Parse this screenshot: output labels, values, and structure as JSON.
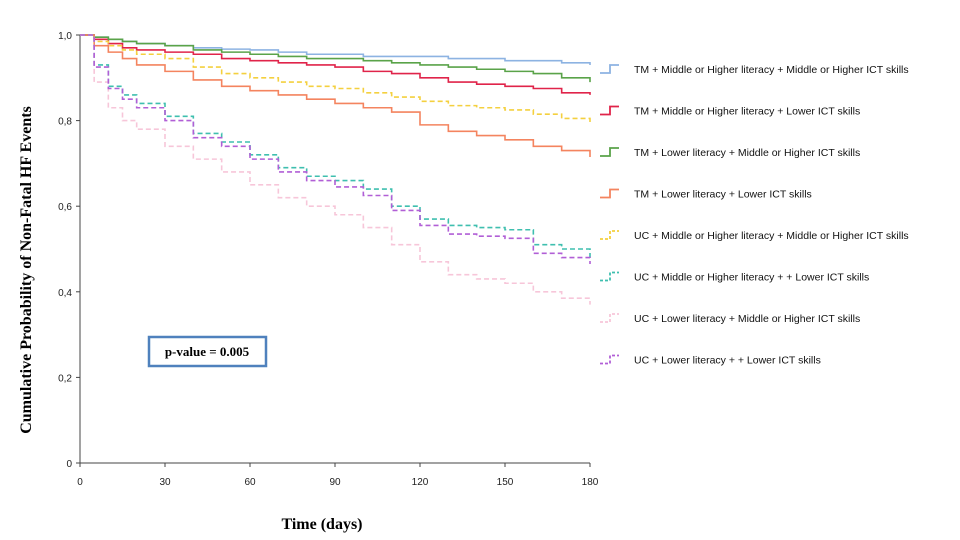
{
  "chart_data": {
    "type": "line",
    "step": true,
    "xlabel": "Time (days)",
    "ylabel": "Cumulative Probability of Non-Fatal HF Events",
    "xlim": [
      0,
      180
    ],
    "ylim": [
      0,
      1.0
    ],
    "xticks": [
      0,
      30,
      60,
      90,
      120,
      150,
      180
    ],
    "yticks": [
      0,
      0.2,
      0.4,
      0.6,
      0.8,
      1.0
    ],
    "xtick_labels": [
      "0",
      "30",
      "60",
      "90",
      "120",
      "150",
      "180"
    ],
    "ytick_labels": [
      "0",
      "0,2",
      "0,4",
      "0,6",
      "0,8",
      "1,0"
    ],
    "grid": false,
    "legend_position": "right",
    "annotation": "p-value = 0.005",
    "series": [
      {
        "name": "TM + Middle or Higher literacy + Middle or Higher ICT skills",
        "color": "#8db3e2",
        "dash": "solid",
        "x": [
          0,
          5,
          10,
          15,
          20,
          30,
          40,
          50,
          60,
          70,
          80,
          90,
          100,
          110,
          120,
          130,
          140,
          150,
          160,
          170,
          180
        ],
        "y": [
          1.0,
          0.995,
          0.99,
          0.985,
          0.98,
          0.975,
          0.97,
          0.967,
          0.965,
          0.96,
          0.955,
          0.955,
          0.95,
          0.95,
          0.95,
          0.945,
          0.945,
          0.94,
          0.94,
          0.935,
          0.93
        ]
      },
      {
        "name": "TM + Middle or Higher literacy + Lower ICT skills",
        "color": "#e0244a",
        "dash": "solid",
        "x": [
          0,
          5,
          10,
          15,
          20,
          30,
          40,
          50,
          60,
          70,
          80,
          90,
          100,
          110,
          120,
          130,
          140,
          150,
          160,
          170,
          180
        ],
        "y": [
          1.0,
          0.99,
          0.98,
          0.97,
          0.965,
          0.96,
          0.955,
          0.945,
          0.94,
          0.935,
          0.93,
          0.925,
          0.915,
          0.91,
          0.9,
          0.89,
          0.885,
          0.88,
          0.875,
          0.865,
          0.86
        ]
      },
      {
        "name": "TM + Lower literacy + Middle or Higher ICT skills",
        "color": "#5aa349",
        "dash": "solid",
        "x": [
          0,
          5,
          10,
          15,
          20,
          30,
          40,
          50,
          60,
          70,
          80,
          90,
          100,
          110,
          120,
          130,
          140,
          150,
          160,
          170,
          180
        ],
        "y": [
          1.0,
          0.995,
          0.99,
          0.985,
          0.98,
          0.975,
          0.965,
          0.96,
          0.955,
          0.95,
          0.945,
          0.945,
          0.94,
          0.935,
          0.93,
          0.925,
          0.92,
          0.915,
          0.91,
          0.9,
          0.89
        ]
      },
      {
        "name": "TM + Lower literacy + Lower ICT skills",
        "color": "#f4845f",
        "dash": "solid",
        "x": [
          0,
          5,
          10,
          15,
          20,
          30,
          40,
          50,
          60,
          70,
          80,
          90,
          100,
          110,
          120,
          130,
          140,
          150,
          160,
          170,
          180
        ],
        "y": [
          1.0,
          0.975,
          0.96,
          0.945,
          0.93,
          0.915,
          0.895,
          0.88,
          0.87,
          0.86,
          0.85,
          0.84,
          0.83,
          0.82,
          0.79,
          0.775,
          0.765,
          0.755,
          0.74,
          0.73,
          0.715
        ]
      },
      {
        "name": "UC + Middle or Higher literacy + Middle or Higher ICT skills",
        "color": "#f4d03f",
        "dash": "dashed",
        "x": [
          0,
          5,
          10,
          15,
          20,
          30,
          40,
          50,
          60,
          70,
          80,
          90,
          100,
          110,
          120,
          130,
          140,
          150,
          160,
          170,
          180
        ],
        "y": [
          1.0,
          0.985,
          0.975,
          0.965,
          0.955,
          0.945,
          0.925,
          0.91,
          0.9,
          0.89,
          0.88,
          0.875,
          0.865,
          0.855,
          0.845,
          0.835,
          0.83,
          0.825,
          0.815,
          0.805,
          0.795
        ]
      },
      {
        "name": "UC + Middle or Higher literacy + + Lower ICT skills",
        "color": "#3fbfaf",
        "dash": "dashed",
        "x": [
          0,
          5,
          10,
          15,
          20,
          30,
          40,
          50,
          60,
          70,
          80,
          90,
          100,
          110,
          120,
          130,
          140,
          150,
          160,
          170,
          180
        ],
        "y": [
          1.0,
          0.93,
          0.88,
          0.86,
          0.84,
          0.81,
          0.77,
          0.75,
          0.72,
          0.69,
          0.67,
          0.66,
          0.64,
          0.6,
          0.57,
          0.555,
          0.55,
          0.545,
          0.51,
          0.5,
          0.48
        ]
      },
      {
        "name": "UC + Lower literacy + Middle or Higher ICT skills",
        "color": "#f7c6d9",
        "dash": "dashed",
        "x": [
          0,
          5,
          10,
          15,
          20,
          30,
          40,
          50,
          60,
          70,
          80,
          90,
          100,
          110,
          120,
          130,
          140,
          150,
          160,
          170,
          180
        ],
        "y": [
          1.0,
          0.89,
          0.83,
          0.8,
          0.78,
          0.74,
          0.71,
          0.68,
          0.65,
          0.62,
          0.6,
          0.58,
          0.55,
          0.51,
          0.47,
          0.44,
          0.43,
          0.42,
          0.4,
          0.385,
          0.37
        ]
      },
      {
        "name": "UC + Lower literacy + + Lower ICT skills",
        "color": "#b15fd6",
        "dash": "dashed",
        "x": [
          0,
          5,
          10,
          15,
          20,
          30,
          40,
          50,
          60,
          70,
          80,
          90,
          100,
          110,
          120,
          130,
          140,
          150,
          160,
          170,
          180
        ],
        "y": [
          1.0,
          0.925,
          0.875,
          0.85,
          0.83,
          0.8,
          0.76,
          0.74,
          0.71,
          0.68,
          0.66,
          0.645,
          0.625,
          0.59,
          0.555,
          0.535,
          0.53,
          0.525,
          0.49,
          0.48,
          0.465
        ]
      }
    ]
  }
}
